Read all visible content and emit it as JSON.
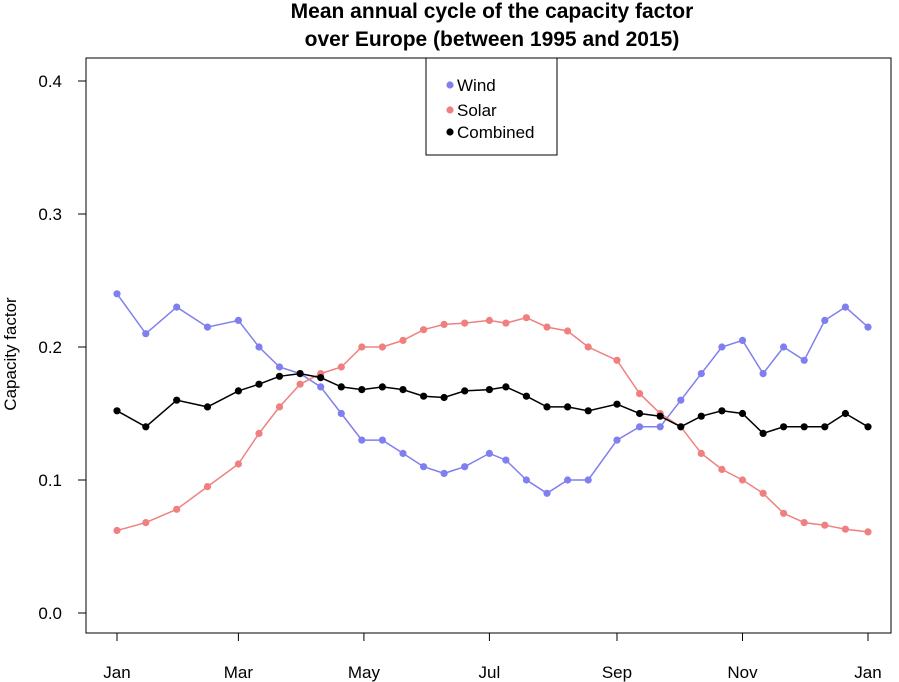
{
  "chart_data": {
    "type": "line",
    "title_lines": [
      "Mean annual cycle of the capacity factor",
      "over Europe (between 1995 and 2015)"
    ],
    "xlabel": "",
    "ylabel": "Capacity factor",
    "x_unit": "day of year",
    "xlim": [
      1,
      366
    ],
    "ylim": [
      0,
      0.4
    ],
    "y_ticks": [
      "0.0",
      "0.1",
      "0.2",
      "0.3",
      "0.4"
    ],
    "y_tick_values": [
      0,
      0.1,
      0.2,
      0.3,
      0.4
    ],
    "x_ticks": [
      "Jan",
      "Mar",
      "May",
      "Jul",
      "Sep",
      "Nov",
      "Jan"
    ],
    "x_tick_values": [
      1,
      60,
      121,
      182,
      244,
      305,
      366
    ],
    "grid": false,
    "legend_position": "top-center",
    "series": [
      {
        "name": "Wind",
        "color": "#7f7fef",
        "style": "points with smoothed line",
        "x": [
          1,
          15,
          30,
          45,
          60,
          70,
          80,
          90,
          100,
          110,
          120,
          130,
          140,
          150,
          160,
          170,
          182,
          190,
          200,
          210,
          220,
          230,
          244,
          255,
          265,
          275,
          285,
          295,
          305,
          315,
          325,
          335,
          345,
          355,
          366
        ],
        "values": [
          0.24,
          0.21,
          0.23,
          0.215,
          0.22,
          0.2,
          0.185,
          0.18,
          0.17,
          0.15,
          0.13,
          0.13,
          0.12,
          0.11,
          0.105,
          0.11,
          0.12,
          0.115,
          0.1,
          0.09,
          0.1,
          0.1,
          0.13,
          0.14,
          0.14,
          0.16,
          0.18,
          0.2,
          0.205,
          0.18,
          0.2,
          0.19,
          0.22,
          0.23,
          0.215
        ]
      },
      {
        "name": "Solar",
        "color": "#f08080",
        "style": "points with smoothed line",
        "x": [
          1,
          15,
          30,
          45,
          60,
          70,
          80,
          90,
          100,
          110,
          120,
          130,
          140,
          150,
          160,
          170,
          182,
          190,
          200,
          210,
          220,
          230,
          244,
          255,
          265,
          275,
          285,
          295,
          305,
          315,
          325,
          335,
          345,
          355,
          366
        ],
        "values": [
          0.062,
          0.068,
          0.078,
          0.095,
          0.112,
          0.135,
          0.155,
          0.172,
          0.18,
          0.185,
          0.2,
          0.2,
          0.205,
          0.213,
          0.217,
          0.218,
          0.22,
          0.218,
          0.222,
          0.215,
          0.212,
          0.2,
          0.19,
          0.165,
          0.15,
          0.14,
          0.12,
          0.108,
          0.1,
          0.09,
          0.075,
          0.068,
          0.066,
          0.063,
          0.061
        ]
      },
      {
        "name": "Combined",
        "color": "#000000",
        "style": "points with smoothed line",
        "x": [
          1,
          15,
          30,
          45,
          60,
          70,
          80,
          90,
          100,
          110,
          120,
          130,
          140,
          150,
          160,
          170,
          182,
          190,
          200,
          210,
          220,
          230,
          244,
          255,
          265,
          275,
          285,
          295,
          305,
          315,
          325,
          335,
          345,
          355,
          366
        ],
        "values": [
          0.152,
          0.14,
          0.16,
          0.155,
          0.167,
          0.172,
          0.178,
          0.18,
          0.177,
          0.17,
          0.168,
          0.17,
          0.168,
          0.163,
          0.162,
          0.167,
          0.168,
          0.17,
          0.163,
          0.155,
          0.155,
          0.152,
          0.157,
          0.15,
          0.148,
          0.14,
          0.148,
          0.152,
          0.15,
          0.135,
          0.14,
          0.14,
          0.14,
          0.15,
          0.14
        ]
      }
    ]
  }
}
